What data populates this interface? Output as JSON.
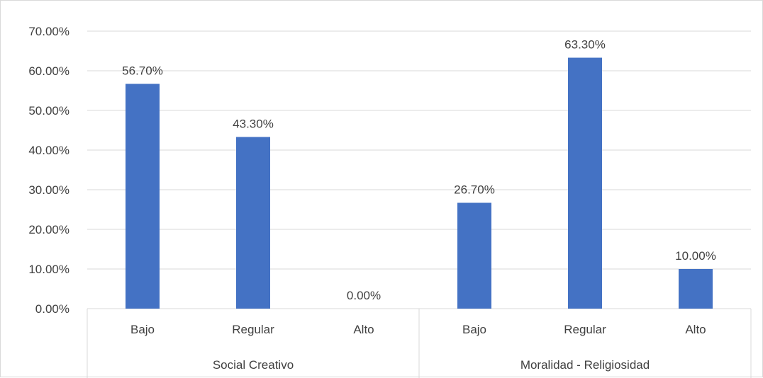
{
  "chart_data": {
    "type": "bar",
    "title": "",
    "xlabel": "",
    "ylabel": "",
    "ylim": [
      0,
      0.7
    ],
    "y_ticks": [
      "0.00%",
      "10.00%",
      "20.00%",
      "30.00%",
      "40.00%",
      "50.00%",
      "60.00%",
      "70.00%"
    ],
    "grid": true,
    "legend": "none",
    "groups": [
      {
        "name": "Social Creativo",
        "categories": [
          "Bajo",
          "Regular",
          "Alto"
        ],
        "values": [
          0.567,
          0.433,
          0.0
        ],
        "labels": [
          "56.70%",
          "43.30%",
          "0.00%"
        ]
      },
      {
        "name": "Moralidad - Religiosidad",
        "categories": [
          "Bajo",
          "Regular",
          "Alto"
        ],
        "values": [
          0.267,
          0.633,
          0.1
        ],
        "labels": [
          "26.70%",
          "63.30%",
          "10.00%"
        ]
      }
    ],
    "colors": {
      "bar": "#4472c4",
      "grid": "#d9d9d9",
      "text": "#404040"
    }
  }
}
